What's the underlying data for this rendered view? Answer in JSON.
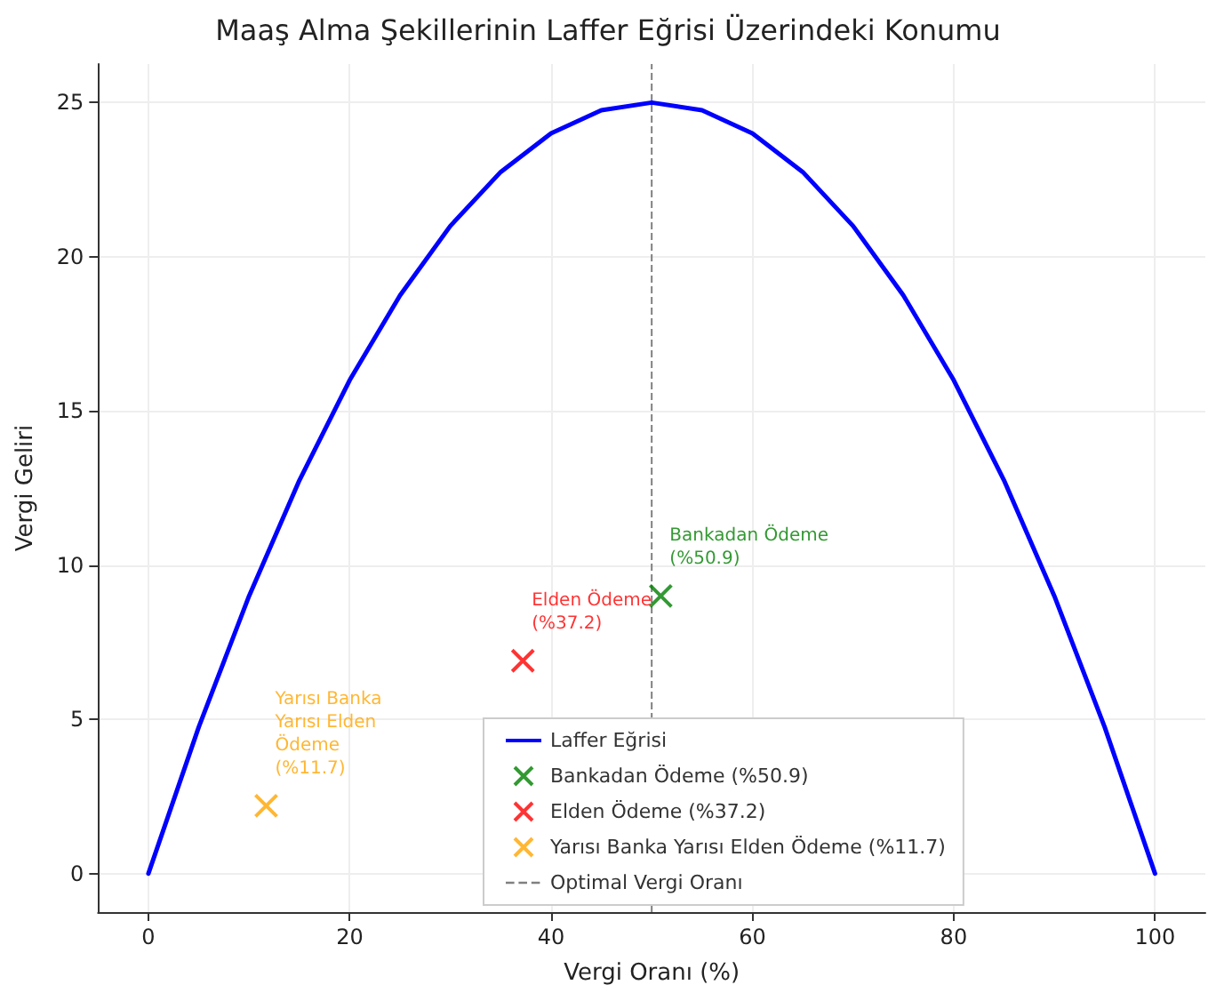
{
  "chart_data": {
    "type": "line",
    "title": "Maaş Alma Şekillerinin Laffer Eğrisi Üzerindeki Konumu",
    "xlabel": "Vergi Oranı (%)",
    "ylabel": "Vergi Geliri",
    "x": [
      0,
      5,
      10,
      15,
      20,
      25,
      30,
      35,
      40,
      45,
      50,
      55,
      60,
      65,
      70,
      75,
      80,
      85,
      90,
      95,
      100
    ],
    "series": [
      {
        "name": "Laffer Eğrisi",
        "color": "#0000ff",
        "marker": "none",
        "values": [
          0,
          4.75,
          9,
          12.75,
          16,
          18.75,
          21,
          22.75,
          24,
          24.75,
          25,
          24.75,
          24,
          22.75,
          21,
          18.75,
          16,
          12.75,
          9,
          4.75,
          0
        ]
      },
      {
        "name": "Bankadan Ödeme (%50.9)",
        "type": "scatter",
        "color": "#008000",
        "marker": "cross",
        "x": [
          50.9
        ],
        "values": [
          9.0
        ]
      },
      {
        "name": "Elden Ödeme (%37.2)",
        "type": "scatter",
        "color": "#ff0000",
        "marker": "cross",
        "x": [
          37.2
        ],
        "values": [
          6.9
        ]
      },
      {
        "name": "Yarısı Banka Yarısı Elden Ödeme (%11.7)",
        "type": "scatter",
        "color": "#ffa500",
        "marker": "cross",
        "x": [
          11.7
        ],
        "values": [
          2.2
        ]
      }
    ],
    "ref_lines": [
      {
        "axis": "x",
        "value": 50,
        "label": "Optimal Vergi Oranı",
        "color": "#808080",
        "line_style": "dashed"
      }
    ],
    "annotations": [
      {
        "text": "Bankadan Ödeme\n(%50.9)",
        "x": 50.9,
        "y": 9.0
      },
      {
        "text": "Elden Ödeme\n(%37.2)",
        "x": 37.2,
        "y": 6.9
      },
      {
        "text": "Yarısı Banka Yarısı Elden Ödeme\n(%11.7)",
        "x": 11.7,
        "y": 2.2
      }
    ],
    "xlim": [
      -5,
      105
    ],
    "xticks": [
      0,
      20,
      40,
      60,
      80,
      100
    ],
    "ylim": [
      -1.25,
      26.25
    ],
    "yticks": [
      0,
      5,
      10,
      15,
      20,
      25
    ],
    "grid": true,
    "legend": "bottom"
  }
}
